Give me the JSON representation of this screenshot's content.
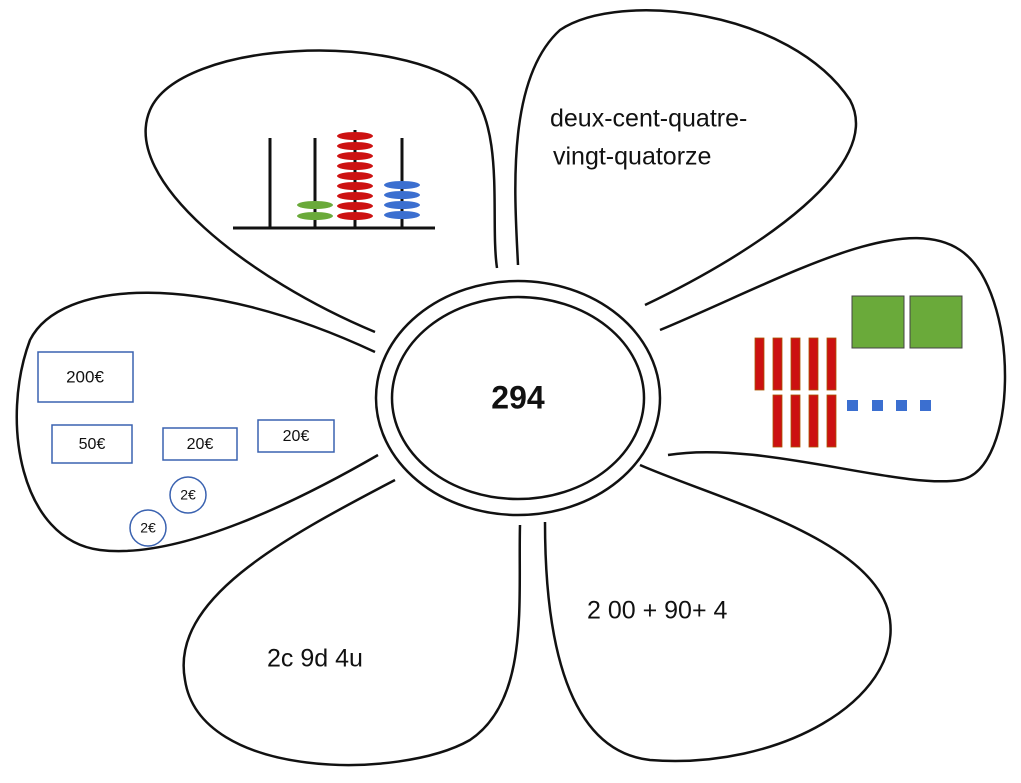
{
  "center": {
    "label": "294"
  },
  "petals": {
    "words": {
      "lines": [
        "deux-cent-quatre-",
        "vingt-quatorze"
      ]
    },
    "money": {
      "items": [
        "200€",
        "50€",
        "20€",
        "20€",
        "2€",
        "2€"
      ]
    },
    "units": {
      "label": "2c 9d 4u"
    },
    "sum": {
      "label": "2 00 + 90+ 4"
    }
  }
}
